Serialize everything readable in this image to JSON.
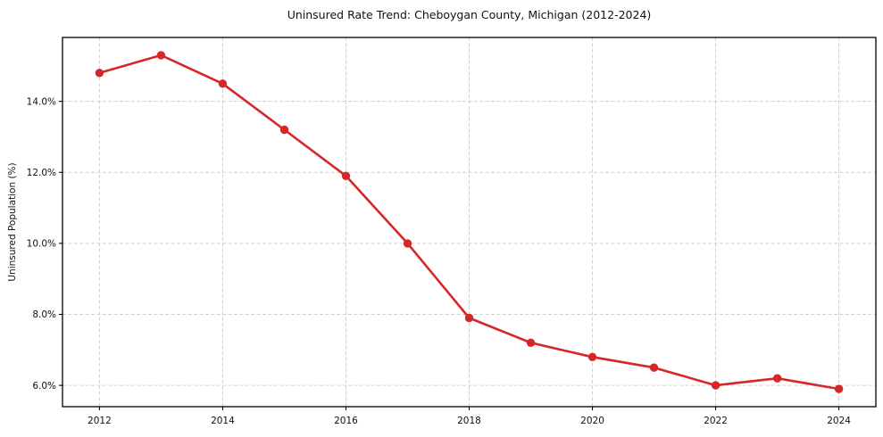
{
  "chart_data": {
    "type": "line",
    "title": "Uninsured Rate Trend: Cheboygan County, Michigan (2012-2024)",
    "xlabel": "",
    "ylabel": "Uninsured Population (%)",
    "x": [
      2012,
      2013,
      2014,
      2015,
      2016,
      2017,
      2018,
      2019,
      2020,
      2021,
      2022,
      2023,
      2024
    ],
    "values": [
      14.8,
      15.3,
      14.5,
      13.2,
      11.9,
      10.0,
      7.9,
      7.2,
      6.8,
      6.5,
      6.0,
      6.2,
      5.9
    ],
    "xlim": [
      2011.4,
      2024.6
    ],
    "ylim": [
      5.4,
      15.8
    ],
    "xticks": {
      "values": [
        2012,
        2014,
        2016,
        2018,
        2020,
        2022,
        2024
      ],
      "labels": [
        "2012",
        "2014",
        "2016",
        "2018",
        "2020",
        "2022",
        "2024"
      ]
    },
    "yticks": {
      "values": [
        6,
        8,
        10,
        12,
        14
      ],
      "labels": [
        "6.0%",
        "8.0%",
        "10.0%",
        "12.0%",
        "14.0%"
      ]
    },
    "grid": true,
    "legend_position": "none",
    "marker": "circle",
    "colors": {
      "line": "#d62728",
      "marker": "#d62728",
      "grid": "#d0d0d0",
      "spine": "#000000",
      "text": "#111111",
      "background": "#ffffff"
    }
  }
}
